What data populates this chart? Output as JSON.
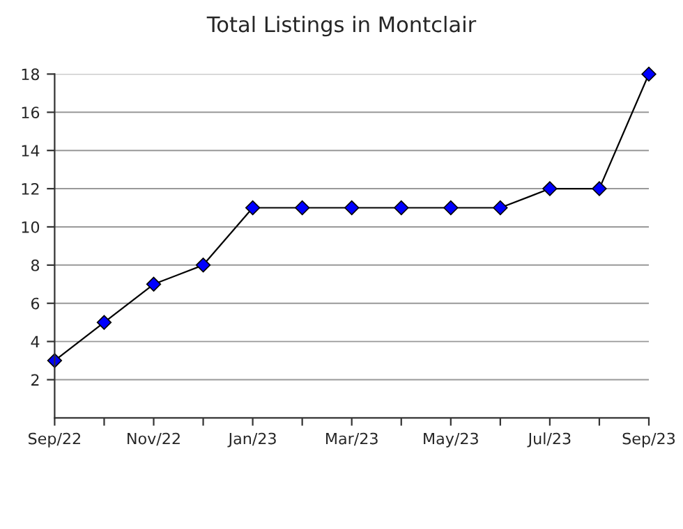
{
  "chart_data": {
    "type": "line",
    "title": "Total Listings in Montclair",
    "categories": [
      "Sep/22",
      null,
      "Nov/22",
      null,
      "Jan/23",
      null,
      "Mar/23",
      null,
      "May/23",
      null,
      "Jul/23",
      null,
      "Sep/23"
    ],
    "series": [
      {
        "color": "#0000ff",
        "values": [
          3,
          5,
          7,
          8,
          11,
          11,
          11,
          11,
          11,
          11,
          12,
          12,
          18
        ]
      }
    ],
    "ylim": [
      0,
      18
    ],
    "yticks": [
      2,
      4,
      6,
      8,
      10,
      12,
      14,
      16,
      18
    ],
    "grid": "y",
    "marker": "diamond",
    "line_style": "solid",
    "legend": false
  }
}
